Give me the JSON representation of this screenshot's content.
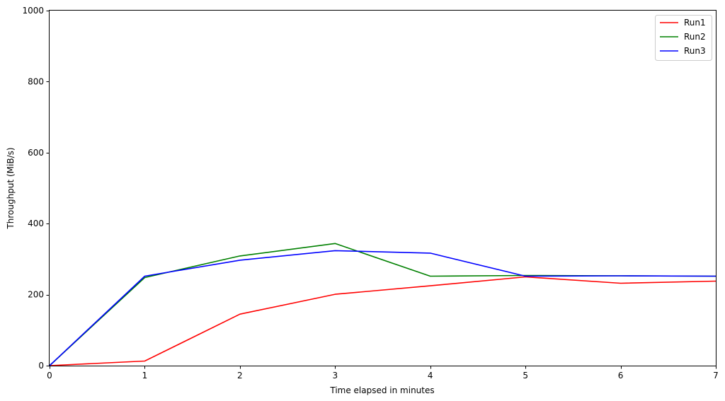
{
  "chart_data": {
    "type": "line",
    "xlabel": "Time elapsed in minutes",
    "ylabel": "Throughput (MiB/s)",
    "xlim": [
      0,
      7
    ],
    "ylim": [
      0,
      1000
    ],
    "xticks": [
      0,
      1,
      2,
      3,
      4,
      5,
      6,
      7
    ],
    "yticks": [
      0,
      200,
      400,
      600,
      800,
      1000
    ],
    "grid": false,
    "legend_position": "top-right",
    "series": [
      {
        "name": "Run1",
        "color": "#ff0000",
        "x": [
          0,
          1,
          2,
          3,
          4,
          5,
          6,
          7
        ],
        "y": [
          0,
          13,
          145,
          201,
          225,
          250,
          232,
          238
        ]
      },
      {
        "name": "Run2",
        "color": "#008000",
        "x": [
          0,
          1,
          2,
          3,
          4,
          5,
          6,
          7
        ],
        "y": [
          0,
          248,
          309,
          344,
          252,
          254,
          253,
          252
        ]
      },
      {
        "name": "Run3",
        "color": "#0000ff",
        "x": [
          0,
          1,
          2,
          3,
          4,
          5,
          6,
          7
        ],
        "y": [
          0,
          252,
          297,
          324,
          317,
          252,
          253,
          252
        ]
      }
    ]
  }
}
